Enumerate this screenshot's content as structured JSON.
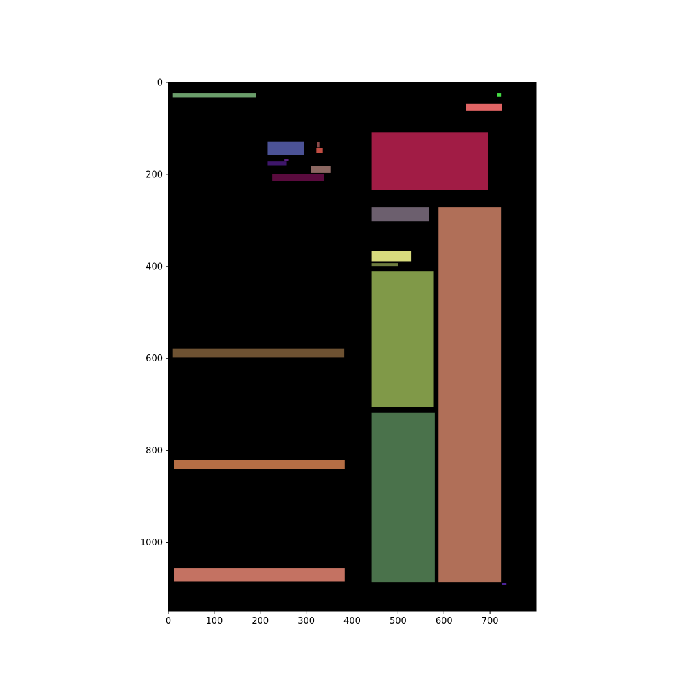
{
  "chart_data": {
    "type": "image",
    "title": "",
    "xlabel": "",
    "ylabel": "",
    "xlim": [
      0,
      800
    ],
    "ylim": [
      1150,
      0
    ],
    "y_inverted": true,
    "grid": false,
    "background": "#000000",
    "x_ticks": [
      {
        "value": 0,
        "label": "0"
      },
      {
        "value": 100,
        "label": "100"
      },
      {
        "value": 200,
        "label": "200"
      },
      {
        "value": 300,
        "label": "300"
      },
      {
        "value": 400,
        "label": "400"
      },
      {
        "value": 500,
        "label": "500"
      },
      {
        "value": 600,
        "label": "600"
      },
      {
        "value": 700,
        "label": "700"
      }
    ],
    "y_ticks": [
      {
        "value": 0,
        "label": "0"
      },
      {
        "value": 200,
        "label": "200"
      },
      {
        "value": 400,
        "label": "400"
      },
      {
        "value": 600,
        "label": "600"
      },
      {
        "value": 800,
        "label": "800"
      },
      {
        "value": 1000,
        "label": "1000"
      }
    ],
    "rects": [
      {
        "x0": 10,
        "y0": 24,
        "x1": 190,
        "y1": 32,
        "color": "#6b9e6b"
      },
      {
        "x0": 716,
        "y0": 24,
        "x1": 724,
        "y1": 31,
        "color": "#44dd44"
      },
      {
        "x0": 648,
        "y0": 46,
        "x1": 726,
        "y1": 61,
        "color": "#e06464"
      },
      {
        "x0": 216,
        "y0": 128,
        "x1": 296,
        "y1": 158,
        "color": "#4b5296"
      },
      {
        "x0": 323,
        "y0": 129,
        "x1": 330,
        "y1": 141,
        "color": "#8a4a4a"
      },
      {
        "x0": 322,
        "y0": 142,
        "x1": 336,
        "y1": 153,
        "color": "#c24d43"
      },
      {
        "x0": 216,
        "y0": 172,
        "x1": 258,
        "y1": 180,
        "color": "#3e166b"
      },
      {
        "x0": 253,
        "y0": 166,
        "x1": 261,
        "y1": 171,
        "color": "#5b2080"
      },
      {
        "x0": 311,
        "y0": 182,
        "x1": 354,
        "y1": 197,
        "color": "#8b6761"
      },
      {
        "x0": 226,
        "y0": 200,
        "x1": 338,
        "y1": 215,
        "color": "#5a0b3e"
      },
      {
        "x0": 442,
        "y0": 108,
        "x1": 696,
        "y1": 234,
        "color": "#a11c45"
      },
      {
        "x0": 442,
        "y0": 272,
        "x1": 568,
        "y1": 302,
        "color": "#6c5f6e"
      },
      {
        "x0": 588,
        "y0": 272,
        "x1": 724,
        "y1": 1086,
        "color": "#b06f58"
      },
      {
        "x0": 442,
        "y0": 367,
        "x1": 528,
        "y1": 389,
        "color": "#d8db7d"
      },
      {
        "x0": 442,
        "y0": 393,
        "x1": 500,
        "y1": 399,
        "color": "#6e7c3e"
      },
      {
        "x0": 442,
        "y0": 411,
        "x1": 578,
        "y1": 705,
        "color": "#809948"
      },
      {
        "x0": 442,
        "y0": 718,
        "x1": 580,
        "y1": 1086,
        "color": "#4a724b"
      },
      {
        "x0": 10,
        "y0": 579,
        "x1": 383,
        "y1": 598,
        "color": "#6e5232"
      },
      {
        "x0": 12,
        "y0": 821,
        "x1": 384,
        "y1": 840,
        "color": "#b56e45"
      },
      {
        "x0": 12,
        "y0": 1056,
        "x1": 384,
        "y1": 1085,
        "color": "#c47262"
      },
      {
        "x0": 726,
        "y0": 1088,
        "x1": 736,
        "y1": 1093,
        "color": "#4b2399"
      }
    ]
  }
}
